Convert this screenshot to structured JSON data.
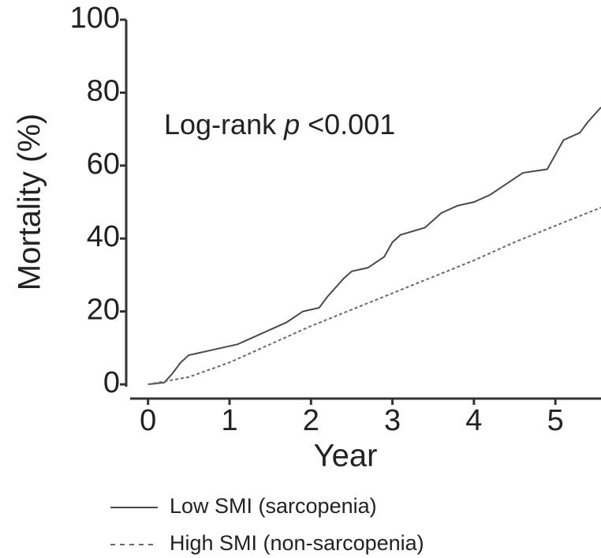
{
  "chart_data": {
    "type": "line",
    "xlabel": "Year",
    "ylabel": "Mortality (%)",
    "annotation": [
      "Log-rank",
      "p",
      "<0.001"
    ],
    "xlim": [
      -0.22,
      5.56
    ],
    "xticks": [
      0,
      1,
      2,
      3,
      4,
      5
    ],
    "ylim": [
      0,
      100
    ],
    "yticks": [
      0,
      20,
      40,
      60,
      80,
      100
    ],
    "series": [
      {
        "name": "Low SMI (sarcopenia)",
        "color": "#4a4a4a",
        "linestyle": "solid",
        "x": [
          0,
          0.2,
          0.3,
          0.4,
          0.5,
          0.7,
          0.9,
          1.1,
          1.3,
          1.5,
          1.7,
          1.9,
          2.1,
          2.2,
          2.4,
          2.5,
          2.7,
          2.9,
          3.0,
          3.1,
          3.4,
          3.6,
          3.8,
          4.0,
          4.2,
          4.4,
          4.6,
          4.9,
          5.0,
          5.1,
          5.3,
          5.4,
          5.56
        ],
        "values": [
          0,
          0.5,
          3,
          6,
          8,
          9,
          10,
          11,
          13,
          15,
          17,
          20,
          21,
          24,
          29,
          31,
          32,
          35,
          39,
          41,
          43,
          47,
          49,
          50,
          52,
          55,
          58,
          59,
          63,
          67,
          69,
          72,
          76
        ]
      },
      {
        "name": "High SMI (non-sarcopenia)",
        "color": "#6a6a6a",
        "linestyle": "dashed",
        "x": [
          0,
          0.5,
          1,
          1.5,
          2,
          2.5,
          3,
          3.5,
          4,
          4.5,
          5,
          5.56
        ],
        "values": [
          0,
          2,
          6,
          11,
          16,
          20.5,
          25,
          29.5,
          34,
          39,
          43.5,
          48.5
        ]
      }
    ]
  }
}
